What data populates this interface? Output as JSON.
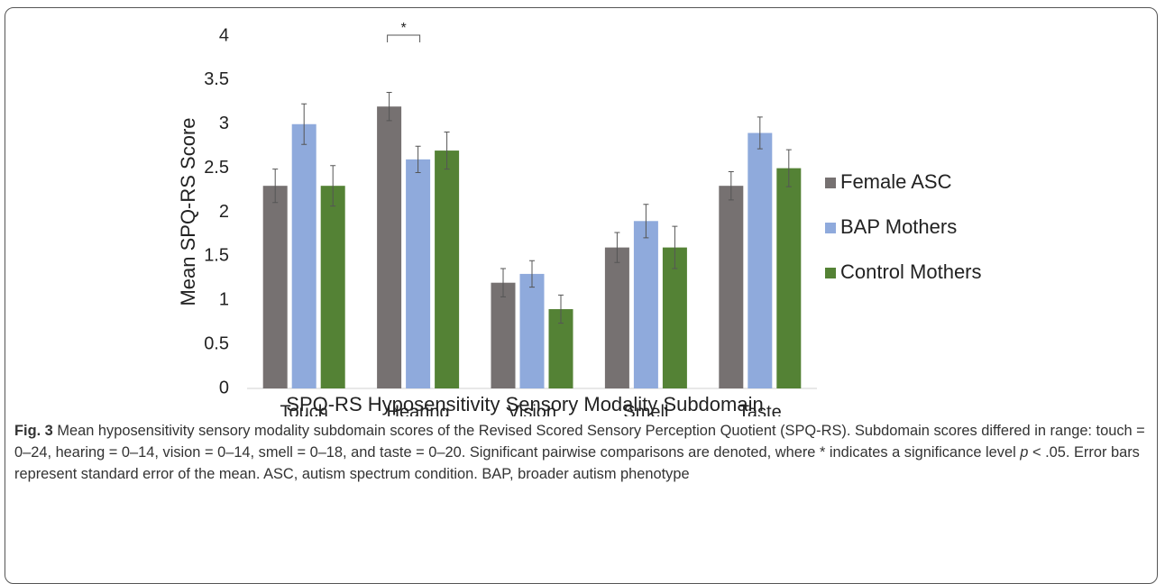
{
  "chart_data": {
    "type": "bar",
    "y_label": "Mean SPQ-RS Score",
    "x_label": "SPQ-RS Hyposensitivity Sensory Modality Subdomain",
    "categories": [
      "Touch",
      "Hearing",
      "Vision",
      "Smell",
      "Taste"
    ],
    "series": [
      {
        "name": "Female ASC",
        "color": "#767171",
        "values": [
          2.3,
          3.2,
          1.2,
          1.6,
          2.3
        ],
        "errors": [
          0.19,
          0.16,
          0.16,
          0.17,
          0.16
        ]
      },
      {
        "name": "BAP Mothers",
        "color": "#8faadc",
        "values": [
          3.0,
          2.6,
          1.3,
          1.9,
          2.9
        ],
        "errors": [
          0.23,
          0.15,
          0.15,
          0.19,
          0.18
        ]
      },
      {
        "name": "Control Mothers",
        "color": "#548235",
        "values": [
          2.3,
          2.7,
          0.9,
          1.6,
          2.5
        ],
        "errors": [
          0.23,
          0.21,
          0.16,
          0.24,
          0.21
        ]
      }
    ],
    "ylim": [
      0,
      4
    ],
    "yticks": [
      0,
      0.5,
      1,
      1.5,
      2,
      2.5,
      3,
      3.5,
      4
    ],
    "grid": false,
    "legend": "right",
    "annotations": [
      {
        "text": "*"
      }
    ]
  },
  "caption": {
    "label": "Fig. 3",
    "text": "Mean hyposensitivity sensory modality subdomain scores of the Revised Scored Sensory Perception Quotient (SPQ-RS). Subdomain scores differed in range: touch = 0–24, hearing = 0–14, vision = 0–14, smell = 0–18, and taste = 0–20. Significant pairwise comparisons are denoted, where * indicates a significance level",
    "p": "p",
    "text_end": "< .05. Error bars represent standard error of the mean. ASC, autism spectrum condition. BAP, broader autism phenotype"
  }
}
